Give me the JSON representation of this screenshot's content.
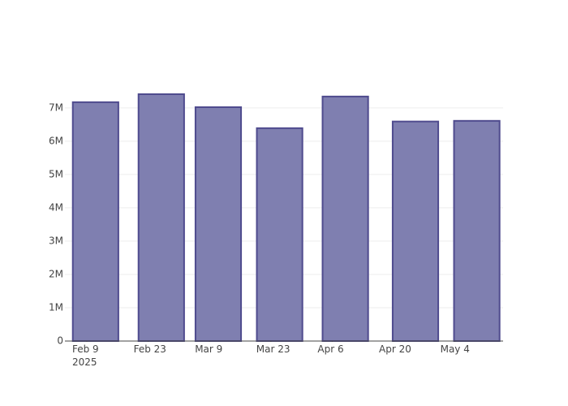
{
  "chart_data": {
    "type": "bar",
    "x": [
      "2025-02-11",
      "2025-02-26",
      "2025-03-11",
      "2025-03-25",
      "2025-04-09",
      "2025-04-25",
      "2025-05-09"
    ],
    "values": [
      7170000,
      7410000,
      7020000,
      6390000,
      7340000,
      6590000,
      6610000
    ],
    "color": "#7f7fb0",
    "edge_color": "#4f4b8e",
    "xlim": [
      "2025-02-04",
      "2025-05-15"
    ],
    "xticks": [
      {
        "value": "2025-02-09",
        "label": "Feb 9\n2025"
      },
      {
        "value": "2025-02-23",
        "label": "Feb 23"
      },
      {
        "value": "2025-03-09",
        "label": "Mar 9"
      },
      {
        "value": "2025-03-23",
        "label": "Mar 23"
      },
      {
        "value": "2025-04-06",
        "label": "Apr 6"
      },
      {
        "value": "2025-04-20",
        "label": "Apr 20"
      },
      {
        "value": "2025-05-04",
        "label": "May 4"
      }
    ],
    "ylim": [
      0,
      7800000
    ],
    "yticks": [
      0,
      {
        "value": 1000000,
        "label": "1M"
      },
      {
        "value": 2000000,
        "label": "2M"
      },
      {
        "value": 3000000,
        "label": "3M"
      },
      {
        "value": 4000000,
        "label": "4M"
      },
      {
        "value": 5000000,
        "label": "5M"
      },
      {
        "value": 6000000,
        "label": "6M"
      },
      {
        "value": 7000000,
        "label": "7M"
      }
    ],
    "grid": true
  }
}
